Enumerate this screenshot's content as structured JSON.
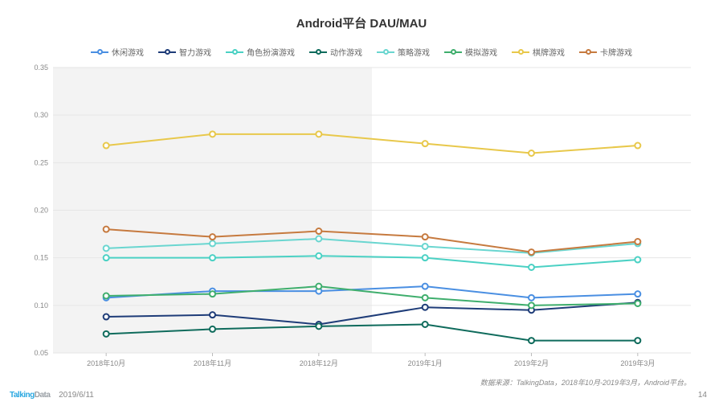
{
  "title": "Android平台  DAU/MAU",
  "title_fontsize": 15,
  "legend_fontsize": 10,
  "chart": {
    "type": "line",
    "background_color": "#ffffff",
    "grid_color": "#e6e6e6",
    "ylim": [
      0.05,
      0.35
    ],
    "ytick_step": 0.05,
    "ytick_format": "0.00",
    "tick_fontsize": 9,
    "line_width": 2,
    "marker_radius": 3.5,
    "shade_to_index": 2,
    "shade_color": "#f3f3f3",
    "categories": [
      "2018年10月",
      "2018年11月",
      "2018年12月",
      "2019年1月",
      "2019年2月",
      "2019年3月"
    ],
    "series": [
      {
        "name": "休闲游戏",
        "color": "#4a8fe2",
        "values": [
          0.108,
          0.115,
          0.115,
          0.12,
          0.108,
          0.112
        ]
      },
      {
        "name": "智力游戏",
        "color": "#1e3c78",
        "values": [
          0.088,
          0.09,
          0.08,
          0.098,
          0.095,
          0.103
        ]
      },
      {
        "name": "角色扮演游戏",
        "color": "#4bd1c4",
        "values": [
          0.15,
          0.15,
          0.152,
          0.15,
          0.14,
          0.148
        ]
      },
      {
        "name": "动作游戏",
        "color": "#0f6b5c",
        "values": [
          0.07,
          0.075,
          0.078,
          0.08,
          0.063,
          0.063
        ]
      },
      {
        "name": "策略游戏",
        "color": "#6ad6d0",
        "values": [
          0.16,
          0.165,
          0.17,
          0.162,
          0.155,
          0.165
        ]
      },
      {
        "name": "模拟游戏",
        "color": "#3fae6d",
        "values": [
          0.11,
          0.112,
          0.12,
          0.108,
          0.1,
          0.102
        ]
      },
      {
        "name": "棋牌游戏",
        "color": "#e8c84b",
        "values": [
          0.268,
          0.28,
          0.28,
          0.27,
          0.26,
          0.268
        ]
      },
      {
        "name": "卡牌游戏",
        "color": "#c67a3f",
        "values": [
          0.18,
          0.172,
          0.178,
          0.172,
          0.156,
          0.167
        ]
      }
    ]
  },
  "source_text": "数据来源：TalkingData，2018年10月-2019年3月，Android平台。",
  "source_fontsize": 9,
  "footer": {
    "logo_blue": "Talking",
    "logo_grey": "Data",
    "date": "2019/6/11",
    "page": "14",
    "fontsize": 10
  }
}
